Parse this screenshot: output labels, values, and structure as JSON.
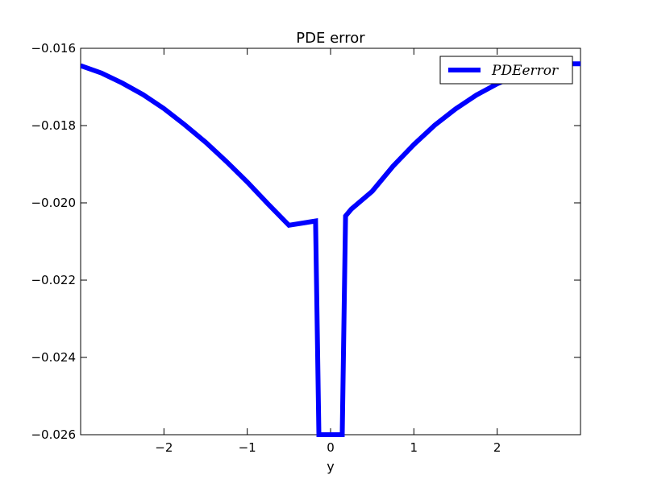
{
  "chart_data": {
    "type": "line",
    "title": "PDE error",
    "xlabel": "y",
    "ylabel": "",
    "xlim": [
      -3,
      3
    ],
    "ylim": [
      -0.026,
      -0.016
    ],
    "grid": false,
    "legend_position": "top-right",
    "x_ticks": [
      -2,
      -1,
      0,
      1,
      2
    ],
    "x_tick_labels": [
      "−2",
      "−1",
      "0",
      "1",
      "2"
    ],
    "y_ticks": [
      -0.016,
      -0.018,
      -0.02,
      -0.022,
      -0.024,
      -0.026
    ],
    "y_tick_labels": [
      "−0.016",
      "−0.018",
      "−0.020",
      "−0.022",
      "−0.024",
      "−0.026"
    ],
    "series": [
      {
        "name": "PDEerror",
        "color": "#0000ff",
        "x": [
          -3.0,
          -2.75,
          -2.5,
          -2.25,
          -2.0,
          -1.75,
          -1.5,
          -1.25,
          -1.0,
          -0.75,
          -0.5,
          -0.18,
          -0.14,
          -0.1,
          -0.05,
          0.0,
          0.05,
          0.1,
          0.14,
          0.18,
          0.25,
          0.5,
          0.75,
          1.0,
          1.25,
          1.5,
          1.75,
          2.0,
          2.25,
          2.5,
          2.75,
          3.0
        ],
        "y": [
          -0.01645,
          -0.01664,
          -0.0169,
          -0.0172,
          -0.01756,
          -0.01798,
          -0.01843,
          -0.01893,
          -0.01946,
          -0.02003,
          -0.02058,
          -0.02047,
          -0.026,
          -0.026,
          -0.026,
          -0.026,
          -0.026,
          -0.026,
          -0.026,
          -0.02034,
          -0.02016,
          -0.0197,
          -0.01905,
          -0.01849,
          -0.01799,
          -0.01757,
          -0.01721,
          -0.01692,
          -0.01669,
          -0.01651,
          -0.0164,
          -0.0164
        ]
      }
    ]
  }
}
